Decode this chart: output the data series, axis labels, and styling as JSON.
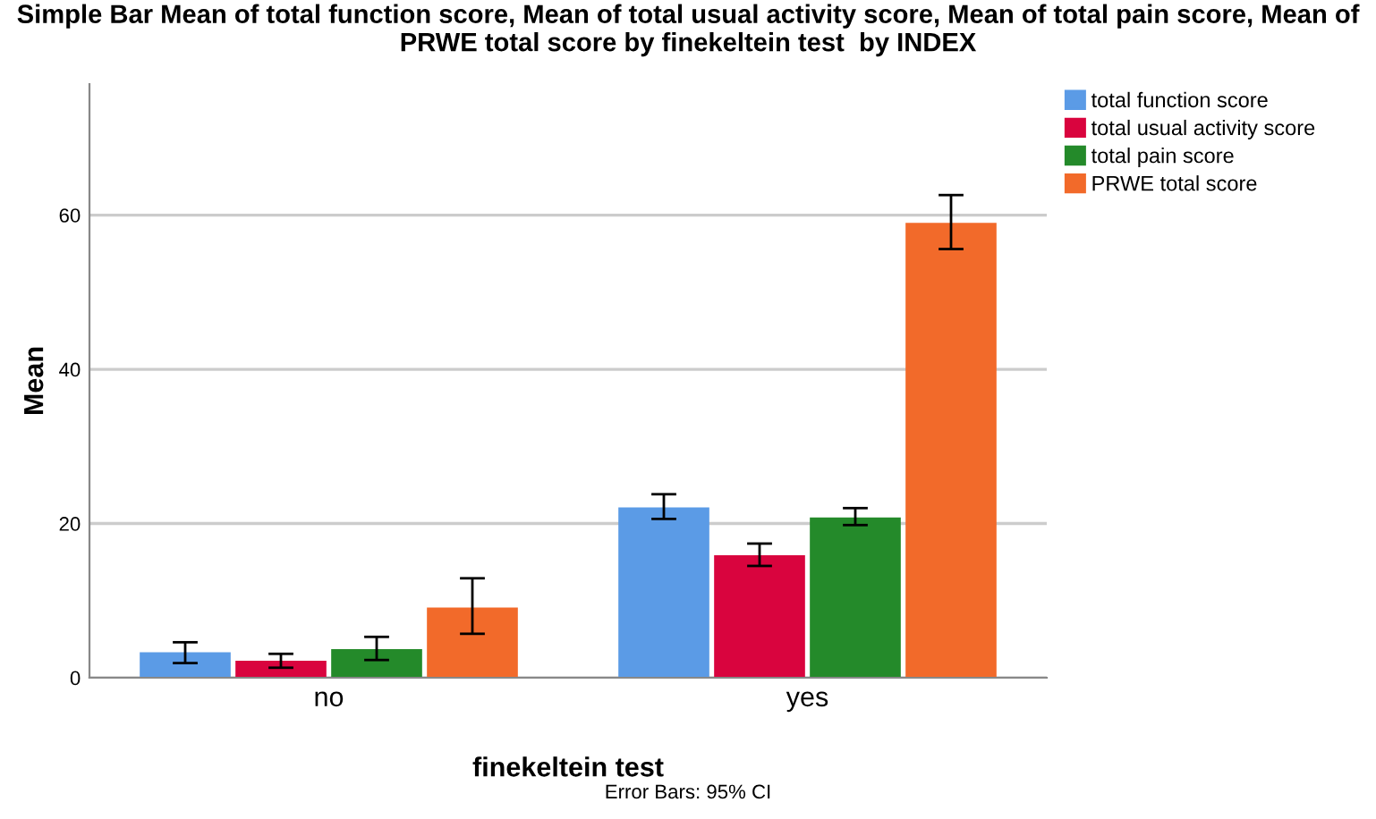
{
  "chart_data": {
    "type": "bar",
    "title": "Simple Bar Mean of total function score, Mean of total usual activity score, Mean of total pain score, Mean of PRWE total score by finekeltein test  by INDEX",
    "xlabel": "finekeltein test",
    "ylabel": "Mean",
    "categories": [
      "no",
      "yes"
    ],
    "series": [
      {
        "name": "total function score",
        "color": "#5b9be6",
        "values": [
          3.3,
          22.1
        ],
        "errors": [
          [
            1.9,
            4.6
          ],
          [
            20.6,
            23.8
          ]
        ]
      },
      {
        "name": "total usual activity score",
        "color": "#d9043e",
        "values": [
          2.2,
          15.9
        ],
        "errors": [
          [
            1.3,
            3.1
          ],
          [
            14.5,
            17.4
          ]
        ]
      },
      {
        "name": "total pain score",
        "color": "#248a2a",
        "values": [
          3.7,
          20.8
        ],
        "errors": [
          [
            2.3,
            5.3
          ],
          [
            19.8,
            22.0
          ]
        ]
      },
      {
        "name": "PRWE total score",
        "color": "#f26a2a",
        "values": [
          9.1,
          59.0
        ],
        "errors": [
          [
            5.7,
            12.9
          ],
          [
            55.6,
            62.6
          ]
        ]
      }
    ],
    "ylim": [
      0,
      77
    ],
    "yticks": [
      0,
      20,
      40,
      60
    ],
    "grid": "y",
    "legend": "top right",
    "annotations": [
      "Error Bars: 95% CI"
    ]
  }
}
